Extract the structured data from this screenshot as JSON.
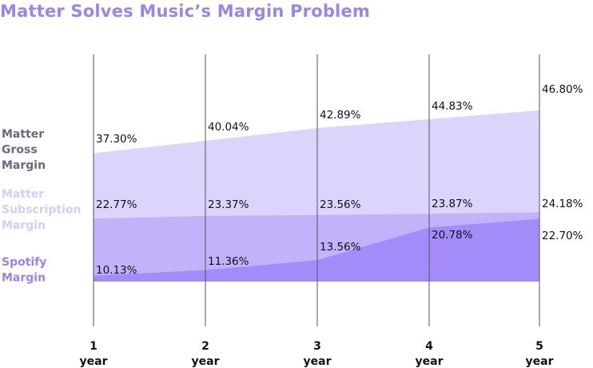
{
  "chart_data": {
    "type": "area",
    "title": "Matter Solves Music’s Margin Problem",
    "x": [
      "1",
      "2",
      "3",
      "4",
      "5"
    ],
    "x_unit": "year",
    "series": [
      {
        "name": "Matter Gross Margin",
        "name_lines": [
          "Matter",
          "Gross",
          "Margin"
        ],
        "values": [
          37.3,
          40.04,
          42.89,
          44.83,
          46.8
        ],
        "labels": [
          "37.30%",
          "40.04%",
          "42.89%",
          "44.83%",
          "46.80%"
        ],
        "color": "#ddd4fb",
        "label_color": "#6d6687"
      },
      {
        "name": "Matter Subscription Margin",
        "name_lines": [
          "Matter",
          "Subscription",
          "Margin"
        ],
        "values": [
          22.77,
          23.37,
          23.56,
          23.87,
          24.18
        ],
        "labels": [
          "22.77%",
          "23.37%",
          "23.56%",
          "23.87%",
          "24.18%"
        ],
        "color": "#c2b2fa",
        "label_color": "#d5ccf8"
      },
      {
        "name": "Spotify Margin",
        "name_lines": [
          "Spotify",
          "Margin"
        ],
        "values": [
          10.13,
          11.36,
          13.56,
          20.78,
          22.7
        ],
        "labels": [
          "10.13%",
          "11.36%",
          "13.56%",
          "20.78%",
          "22.70%"
        ],
        "color": "#a48bfa",
        "label_color": "#9a7ff5"
      }
    ],
    "grid": "vertical",
    "title_color": "#9a84f2"
  }
}
